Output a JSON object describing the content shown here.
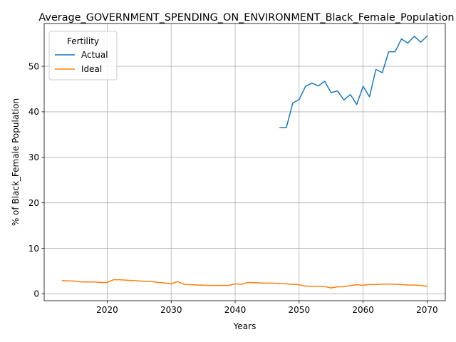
{
  "chart_data": {
    "type": "line",
    "title": "Average_GOVERNMENT_SPENDING_ON_ENVIRONMENT_Black_Female_Population",
    "xlabel": "Years",
    "ylabel": "% of Black_Female Population",
    "xlim": [
      2010.15,
      2072.85
    ],
    "ylim": [
      -1.5,
      59.4
    ],
    "xticks": [
      2020,
      2030,
      2040,
      2050,
      2060,
      2070
    ],
    "yticks": [
      0,
      10,
      20,
      30,
      40,
      50
    ],
    "grid": true,
    "legend": {
      "title": "Fertility",
      "placement": "top-left"
    },
    "series": [
      {
        "name": "Actual",
        "color": "#1f77b4",
        "x": [
          2047,
          2048,
          2049,
          2050,
          2051,
          2052,
          2053,
          2054,
          2055,
          2056,
          2057,
          2058,
          2059,
          2060,
          2061,
          2062,
          2063,
          2064,
          2065,
          2066,
          2067,
          2068,
          2069,
          2070
        ],
        "y": [
          36.5,
          36.5,
          41.9,
          42.7,
          45.6,
          46.3,
          45.7,
          46.7,
          44.2,
          44.6,
          42.6,
          43.8,
          41.6,
          45.6,
          43.3,
          49.3,
          48.6,
          53.2,
          53.2,
          56.0,
          55.1,
          56.6,
          55.3,
          56.6
        ]
      },
      {
        "name": "Ideal",
        "color": "#ff7f0e",
        "x": [
          2013,
          2014,
          2015,
          2016,
          2017,
          2018,
          2019,
          2020,
          2021,
          2022,
          2023,
          2024,
          2025,
          2026,
          2027,
          2028,
          2029,
          2030,
          2031,
          2032,
          2033,
          2034,
          2035,
          2036,
          2037,
          2038,
          2039,
          2040,
          2041,
          2042,
          2043,
          2044,
          2045,
          2046,
          2047,
          2048,
          2049,
          2050,
          2051,
          2052,
          2053,
          2054,
          2055,
          2056,
          2057,
          2058,
          2059,
          2060,
          2061,
          2062,
          2063,
          2064,
          2065,
          2066,
          2067,
          2068,
          2069,
          2070
        ],
        "y": [
          2.9,
          2.85,
          2.8,
          2.6,
          2.6,
          2.6,
          2.5,
          2.5,
          3.1,
          3.1,
          3.0,
          2.9,
          2.85,
          2.75,
          2.7,
          2.5,
          2.4,
          2.2,
          2.7,
          2.1,
          2.0,
          1.95,
          1.9,
          1.85,
          1.85,
          1.85,
          1.85,
          2.2,
          2.1,
          2.5,
          2.45,
          2.4,
          2.35,
          2.35,
          2.25,
          2.2,
          2.1,
          2.0,
          1.7,
          1.65,
          1.65,
          1.6,
          1.3,
          1.55,
          1.55,
          1.8,
          2.0,
          1.9,
          2.05,
          2.05,
          2.15,
          2.15,
          2.1,
          2.05,
          1.95,
          1.95,
          1.85,
          1.65
        ]
      }
    ]
  }
}
